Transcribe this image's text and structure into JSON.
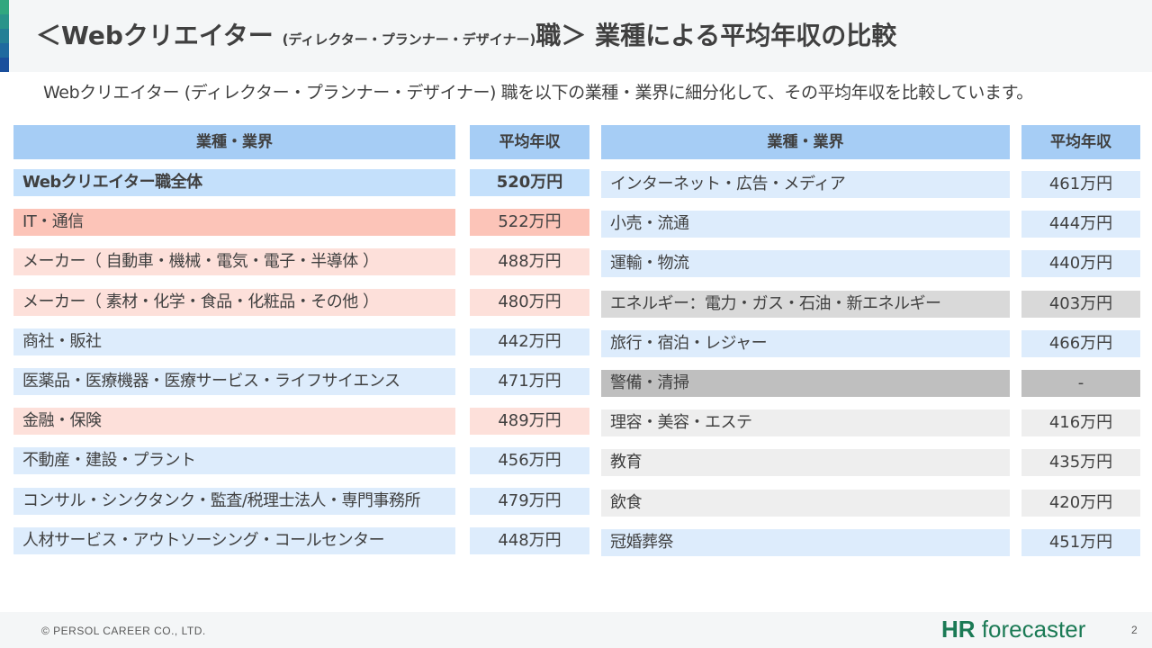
{
  "title": {
    "prefix": "＜Webクリエイター ",
    "sub": "(ディレクター・プランナー・デザイナー)",
    "suffix": "職＞ 業種による平均年収の比較"
  },
  "subtitle": "Webクリエイター (ディレクター・プランナー・デザイナー) 職を以下の業種・業界に細分化して、その平均年収を比較しています。",
  "table_headers": {
    "industry": "業種・業界",
    "salary": "平均年収"
  },
  "colors": {
    "header_blue": "#a6cdf5",
    "blue": "#c4e0fb",
    "lightblue": "#ddecfc",
    "salmon": "#fcc4b8",
    "pink": "#fde0da",
    "gray": "#d9d9d9",
    "darkgray": "#bfbfbf",
    "lightgray": "#eeeeee"
  },
  "left_table": [
    {
      "label": "Webクリエイター職全体",
      "value": "520万円",
      "tone": "blue",
      "bold": true
    },
    {
      "label": "IT・通信",
      "value": "522万円",
      "tone": "salmon"
    },
    {
      "label": "メーカー（ 自動車・機械・電気・電子・半導体 ）",
      "value": "488万円",
      "tone": "pink"
    },
    {
      "label": "メーカー（ 素材・化学・食品・化粧品・その他 ）",
      "value": "480万円",
      "tone": "pink"
    },
    {
      "label": "商社・販社",
      "value": "442万円",
      "tone": "lightblue"
    },
    {
      "label": "医薬品・医療機器・医療サービス・ライフサイエンス",
      "value": "471万円",
      "tone": "lightblue"
    },
    {
      "label": "金融・保険",
      "value": "489万円",
      "tone": "pink"
    },
    {
      "label": "不動産・建設・プラント",
      "value": "456万円",
      "tone": "lightblue"
    },
    {
      "label": "コンサル・シンクタンク・監査/税理士法人・専門事務所",
      "value": "479万円",
      "tone": "lightblue"
    },
    {
      "label": "人材サービス・アウトソーシング・コールセンター",
      "value": "448万円",
      "tone": "lightblue"
    }
  ],
  "right_table": [
    {
      "label": "インターネット・広告・メディア",
      "value": "461万円",
      "tone": "lightblue"
    },
    {
      "label": "小売・流通",
      "value": "444万円",
      "tone": "lightblue"
    },
    {
      "label": "運輸・物流",
      "value": "440万円",
      "tone": "lightblue"
    },
    {
      "label": "エネルギー：電力・ガス・石油・新エネルギー",
      "value": "403万円",
      "tone": "gray"
    },
    {
      "label": "旅行・宿泊・レジャー",
      "value": "466万円",
      "tone": "lightblue"
    },
    {
      "label": "警備・清掃",
      "value": "-",
      "tone": "darkgray"
    },
    {
      "label": "理容・美容・エステ",
      "value": "416万円",
      "tone": "lightgray"
    },
    {
      "label": "教育",
      "value": "435万円",
      "tone": "lightgray"
    },
    {
      "label": "飲食",
      "value": "420万円",
      "tone": "lightgray"
    },
    {
      "label": "冠婚葬祭",
      "value": "451万円",
      "tone": "lightblue"
    }
  ],
  "footer": {
    "copyright": "© PERSOL CAREER CO., LTD.",
    "logo_hr": "HR",
    "logo_rest": "forecaster",
    "page": "2"
  }
}
